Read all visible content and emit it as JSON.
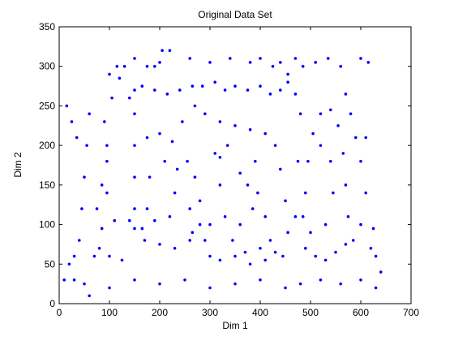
{
  "chart_data": {
    "type": "scatter",
    "title": "Original Data Set",
    "xlabel": "Dim 1",
    "ylabel": "Dim 2",
    "xlim": [
      0,
      700
    ],
    "ylim": [
      0,
      350
    ],
    "xticks": [
      "0",
      "100",
      "200",
      "300",
      "400",
      "500",
      "600",
      "700"
    ],
    "yticks": [
      "0",
      "50",
      "100",
      "150",
      "200",
      "250",
      "300",
      "350"
    ],
    "grid": false,
    "marker": "dot",
    "colors": {
      "points": "#0000ff",
      "axes": "#000000",
      "background": "#ffffff"
    },
    "series": [
      {
        "values": [
          [
            95,
            180
          ],
          [
            95,
            140
          ],
          [
            110,
            105
          ],
          [
            80,
            70
          ],
          [
            75,
            120
          ],
          [
            85,
            150
          ],
          [
            70,
            60
          ],
          [
            90,
            230
          ],
          [
            105,
            260
          ],
          [
            120,
            285
          ],
          [
            130,
            300
          ],
          [
            115,
            300
          ],
          [
            100,
            290
          ],
          [
            60,
            240
          ],
          [
            55,
            200
          ],
          [
            50,
            160
          ],
          [
            45,
            120
          ],
          [
            40,
            80
          ],
          [
            30,
            60
          ],
          [
            20,
            50
          ],
          [
            15,
            250
          ],
          [
            25,
            230
          ],
          [
            35,
            210
          ],
          [
            140,
            260
          ],
          [
            150,
            270
          ],
          [
            165,
            275
          ],
          [
            190,
            270
          ],
          [
            215,
            265
          ],
          [
            240,
            270
          ],
          [
            265,
            275
          ],
          [
            150,
            240
          ],
          [
            150,
            200
          ],
          [
            150,
            160
          ],
          [
            150,
            120
          ],
          [
            150,
            95
          ],
          [
            170,
            80
          ],
          [
            200,
            75
          ],
          [
            230,
            70
          ],
          [
            260,
            80
          ],
          [
            280,
            100
          ],
          [
            175,
            210
          ],
          [
            200,
            215
          ],
          [
            225,
            205
          ],
          [
            235,
            170
          ],
          [
            230,
            140
          ],
          [
            220,
            110
          ],
          [
            190,
            105
          ],
          [
            175,
            120
          ],
          [
            180,
            160
          ],
          [
            210,
            180
          ],
          [
            285,
            275
          ],
          [
            310,
            280
          ],
          [
            330,
            270
          ],
          [
            350,
            275
          ],
          [
            375,
            270
          ],
          [
            400,
            275
          ],
          [
            420,
            265
          ],
          [
            440,
            270
          ],
          [
            455,
            280
          ],
          [
            470,
            265
          ],
          [
            290,
            240
          ],
          [
            320,
            230
          ],
          [
            350,
            225
          ],
          [
            380,
            220
          ],
          [
            410,
            215
          ],
          [
            430,
            200
          ],
          [
            440,
            170
          ],
          [
            450,
            130
          ],
          [
            455,
            90
          ],
          [
            445,
            60
          ],
          [
            310,
            190
          ],
          [
            320,
            150
          ],
          [
            330,
            110
          ],
          [
            345,
            80
          ],
          [
            370,
            65
          ],
          [
            400,
            70
          ],
          [
            420,
            80
          ],
          [
            410,
            110
          ],
          [
            395,
            140
          ],
          [
            390,
            180
          ],
          [
            290,
            80
          ],
          [
            300,
            60
          ],
          [
            320,
            55
          ],
          [
            350,
            60
          ],
          [
            380,
            50
          ],
          [
            410,
            55
          ],
          [
            430,
            65
          ],
          [
            300,
            100
          ],
          [
            280,
            130
          ],
          [
            270,
            160
          ],
          [
            490,
            70
          ],
          [
            510,
            60
          ],
          [
            530,
            55
          ],
          [
            550,
            65
          ],
          [
            570,
            75
          ],
          [
            575,
            110
          ],
          [
            570,
            150
          ],
          [
            565,
            190
          ],
          [
            555,
            225
          ],
          [
            540,
            245
          ],
          [
            520,
            240
          ],
          [
            505,
            215
          ],
          [
            495,
            180
          ],
          [
            490,
            140
          ],
          [
            485,
            110
          ],
          [
            500,
            90
          ],
          [
            530,
            100
          ],
          [
            545,
            140
          ],
          [
            540,
            180
          ],
          [
            520,
            200
          ],
          [
            580,
            240
          ],
          [
            590,
            210
          ],
          [
            600,
            180
          ],
          [
            610,
            140
          ],
          [
            600,
            100
          ],
          [
            585,
            80
          ],
          [
            620,
            70
          ],
          [
            630,
            60
          ],
          [
            615,
            305
          ],
          [
            600,
            310
          ],
          [
            560,
            300
          ],
          [
            535,
            310
          ],
          [
            510,
            305
          ],
          [
            485,
            300
          ],
          [
            470,
            310
          ],
          [
            455,
            290
          ],
          [
            440,
            305
          ],
          [
            425,
            300
          ],
          [
            400,
            310
          ],
          [
            380,
            305
          ],
          [
            340,
            310
          ],
          [
            300,
            305
          ],
          [
            260,
            310
          ],
          [
            220,
            320
          ],
          [
            200,
            305
          ],
          [
            175,
            300
          ],
          [
            150,
            310
          ],
          [
            205,
            320
          ],
          [
            190,
            300
          ],
          [
            50,
            25
          ],
          [
            30,
            30
          ],
          [
            10,
            30
          ],
          [
            60,
            10
          ],
          [
            100,
            20
          ],
          [
            150,
            30
          ],
          [
            200,
            25
          ],
          [
            250,
            30
          ],
          [
            300,
            20
          ],
          [
            350,
            25
          ],
          [
            400,
            30
          ],
          [
            450,
            20
          ],
          [
            480,
            25
          ],
          [
            520,
            30
          ],
          [
            560,
            25
          ],
          [
            600,
            30
          ],
          [
            630,
            20
          ],
          [
            640,
            40
          ],
          [
            625,
            95
          ],
          [
            610,
            210
          ],
          [
            570,
            265
          ],
          [
            140,
            105
          ],
          [
            165,
            95
          ],
          [
            245,
            230
          ],
          [
            270,
            250
          ],
          [
            255,
            180
          ],
          [
            260,
            120
          ],
          [
            265,
            90
          ],
          [
            320,
            185
          ],
          [
            335,
            200
          ],
          [
            360,
            165
          ],
          [
            375,
            150
          ],
          [
            385,
            120
          ],
          [
            360,
            100
          ],
          [
            470,
            110
          ],
          [
            475,
            180
          ],
          [
            480,
            240
          ],
          [
            95,
            200
          ],
          [
            85,
            95
          ],
          [
            100,
            60
          ],
          [
            125,
            55
          ]
        ]
      }
    ]
  }
}
